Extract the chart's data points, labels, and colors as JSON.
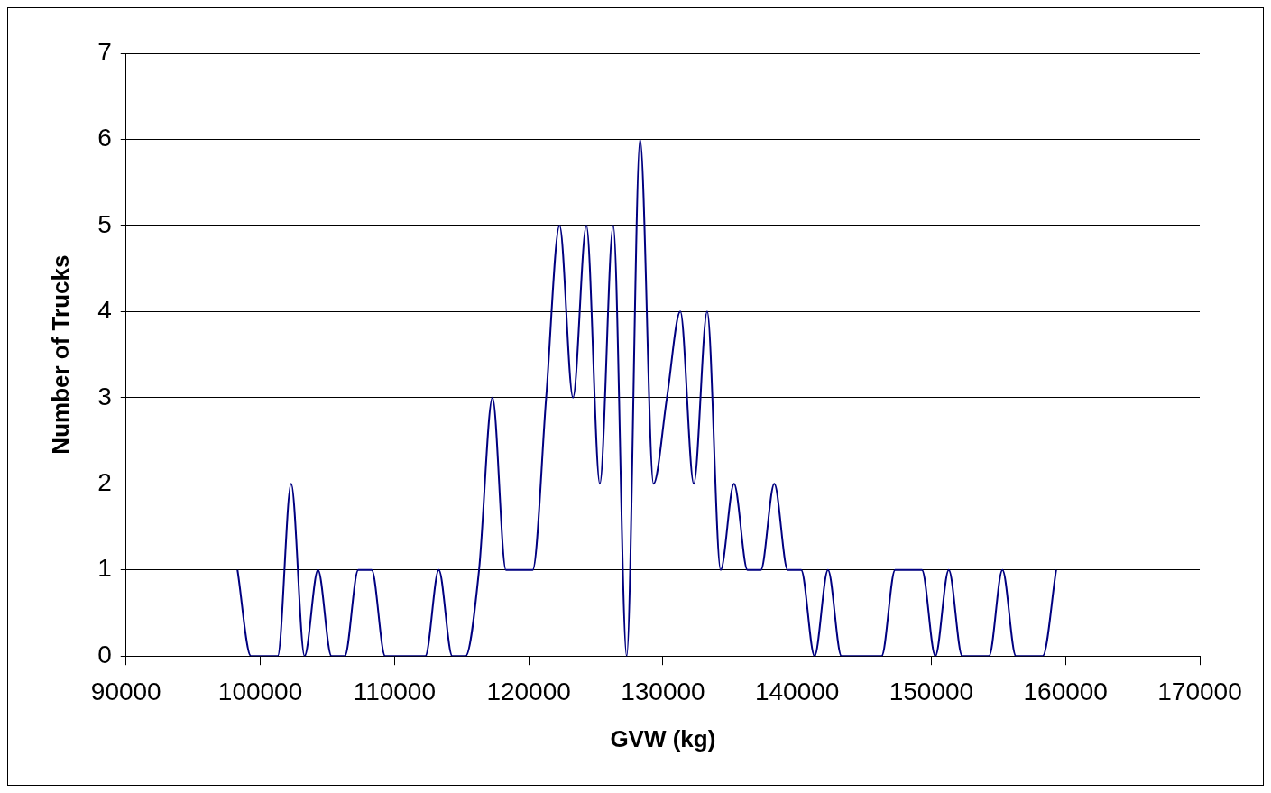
{
  "chart_data": {
    "type": "line",
    "xlabel": "GVW (kg)",
    "ylabel": "Number of Trucks",
    "x": [
      98300,
      99300,
      100300,
      101300,
      102300,
      103300,
      104300,
      105300,
      106300,
      107300,
      108300,
      109300,
      110300,
      111300,
      112300,
      113300,
      114300,
      115300,
      116300,
      117300,
      118300,
      119300,
      120300,
      121300,
      122300,
      123300,
      124300,
      125300,
      126300,
      127300,
      128300,
      129300,
      130300,
      131300,
      132300,
      133300,
      134300,
      135300,
      136300,
      137300,
      138300,
      139300,
      140300,
      141300,
      142300,
      143300,
      144300,
      145300,
      146300,
      147300,
      148300,
      149300,
      150300,
      151300,
      152300,
      153300,
      154300,
      155300,
      156300,
      157300,
      158300,
      159300
    ],
    "series": [
      {
        "color": "#000080",
        "values": [
          1,
          0,
          0,
          0,
          2,
          0,
          1,
          0,
          0,
          1,
          1,
          0,
          0,
          0,
          0,
          1,
          0,
          0,
          1,
          3,
          1,
          1,
          1,
          3,
          5,
          3,
          5,
          2,
          5,
          0,
          6,
          2,
          3,
          4,
          2,
          4,
          1,
          2,
          1,
          1,
          2,
          1,
          1,
          0,
          1,
          0,
          0,
          0,
          0,
          1,
          1,
          1,
          0,
          1,
          0,
          0,
          0,
          1,
          0,
          0,
          0,
          1
        ]
      }
    ],
    "xlim": [
      90000,
      170000
    ],
    "xticks": [
      90000,
      100000,
      110000,
      120000,
      130000,
      140000,
      150000,
      160000,
      170000
    ],
    "ylim": [
      0,
      7
    ],
    "yticks": [
      0,
      1,
      2,
      3,
      4,
      5,
      6,
      7
    ],
    "grid": "y",
    "legend": false,
    "marker": "none",
    "line_style": "solid"
  }
}
